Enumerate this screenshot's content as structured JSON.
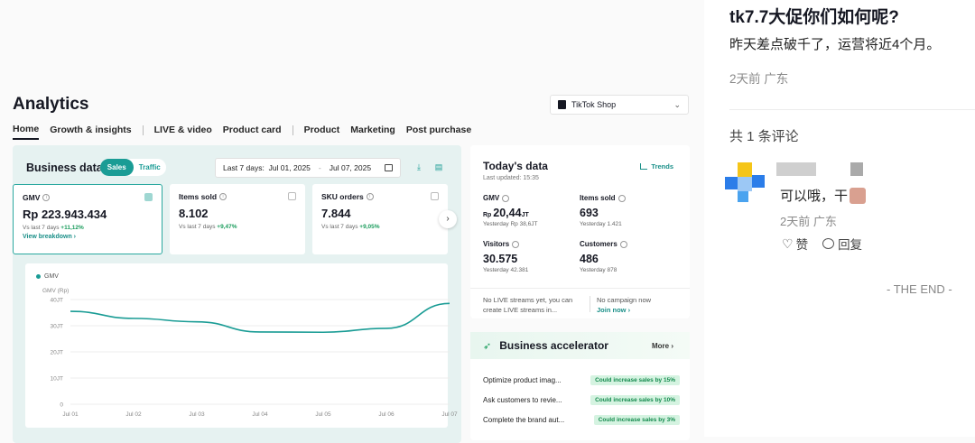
{
  "analytics": {
    "title": "Analytics",
    "shop_select": "TikTok Shop",
    "tabs": [
      "Home",
      "Growth & insights",
      "LIVE & video",
      "Product card",
      "Product",
      "Marketing",
      "Post purchase"
    ],
    "business_data": {
      "title": "Business data",
      "toggle": [
        "Sales",
        "Traffic"
      ],
      "date_label": "Last 7 days:",
      "date_start": "Jul 01, 2025",
      "date_end": "Jul 07, 2025",
      "cards": [
        {
          "label": "GMV",
          "value": "Rp  223.943.434",
          "vs": "Vs last 7 days",
          "change": "+11,12%",
          "link": "View breakdown ›"
        },
        {
          "label": "Items sold",
          "value": "8.102",
          "vs": "Vs last 7 days",
          "change": "+9,47%"
        },
        {
          "label": "SKU orders",
          "value": "7.844",
          "vs": "Vs last 7 days",
          "change": "+9,05%"
        }
      ]
    }
  },
  "chart_data": {
    "type": "line",
    "title": "",
    "legend": [
      "GMV"
    ],
    "ylabel": "GMV (Rp)",
    "yticks": [
      "40JT",
      "30JT",
      "20JT",
      "10JT",
      "0"
    ],
    "ylim": [
      0,
      40
    ],
    "categories": [
      "Jul 01",
      "Jul 02",
      "Jul 03",
      "Jul 04",
      "Jul 05",
      "Jul 06",
      "Jul 07"
    ],
    "series": [
      {
        "name": "GMV",
        "values": [
          35.5,
          32.8,
          31.5,
          27.6,
          27.5,
          29.0,
          38.5
        ]
      }
    ],
    "color": "#1a9c95"
  },
  "today": {
    "title": "Today's data",
    "updated": "Last updated: 15:35",
    "trends": "Trends",
    "metrics": [
      {
        "label": "GMV",
        "prefix": "Rp ",
        "value": "20,44",
        "suffix": "JT",
        "yesterday": "Yesterday Rp 38,6JT"
      },
      {
        "label": "Items sold",
        "value": "693",
        "yesterday": "Yesterday 1.421"
      },
      {
        "label": "Visitors",
        "value": "30.575",
        "yesterday": "Yesterday 42.381"
      },
      {
        "label": "Customers",
        "value": "486",
        "yesterday": "Yesterday 878"
      }
    ],
    "foot_left": "No LIVE streams yet, you can create LIVE streams in...",
    "foot_right": "No campaign now",
    "foot_link": "Join now ›"
  },
  "accelerator": {
    "title": "Business accelerator",
    "more": "More ›",
    "rows": [
      {
        "text": "Optimize product imag...",
        "badge": "Could increase sales by 15%"
      },
      {
        "text": "Ask customers to revie...",
        "badge": "Could increase sales by 10%"
      },
      {
        "text": "Complete the brand aut...",
        "badge": "Could increase sales by 3%"
      }
    ]
  },
  "post": {
    "title": "tk7.7大促你们如何呢?",
    "body": "昨天差点破千了，运营将近4个月。",
    "meta": "2天前 广东",
    "comment_count": "共 1 条评论",
    "comment": {
      "text": "可以哦，干",
      "meta": "2天前 广东",
      "like": "赞",
      "reply": "回复"
    },
    "end": "- THE END -"
  },
  "colors": {
    "accent": "#1a9c95",
    "positive": "#1a9c5c"
  }
}
